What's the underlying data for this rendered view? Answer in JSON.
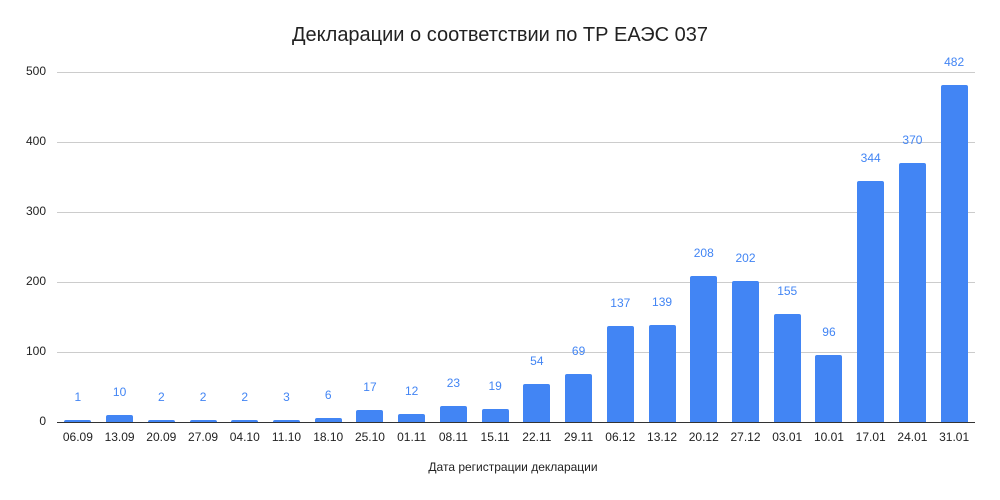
{
  "chart_data": {
    "type": "bar",
    "title": "Декларации о соответствии по ТР ЕАЭС 037",
    "xlabel": "Дата регистрации декларации",
    "ylabel": "",
    "ylim": [
      0,
      500
    ],
    "yticks": [
      0,
      100,
      200,
      300,
      400,
      500
    ],
    "grid": true,
    "legend": "none",
    "bar_color": "#4285f4",
    "data_labels": true,
    "categories": [
      "06.09",
      "13.09",
      "20.09",
      "27.09",
      "04.10",
      "11.10",
      "18.10",
      "25.10",
      "01.11",
      "08.11",
      "15.11",
      "22.11",
      "29.11",
      "06.12",
      "13.12",
      "20.12",
      "27.12",
      "03.01",
      "10.01",
      "17.01",
      "24.01",
      "31.01"
    ],
    "values": [
      1,
      10,
      2,
      2,
      2,
      3,
      6,
      17,
      12,
      23,
      19,
      54,
      69,
      137,
      139,
      208,
      202,
      155,
      96,
      344,
      370,
      482
    ]
  }
}
